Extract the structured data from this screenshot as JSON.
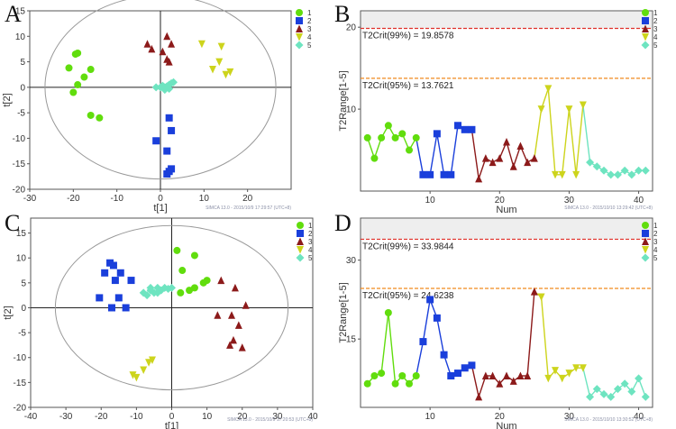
{
  "figure": {
    "panels": {
      "A": {
        "letter": "A",
        "stamp": "SIMCA 13.0 - 2015/10/9 17:29:57 (UTC+8)"
      },
      "B": {
        "letter": "B",
        "stamp": "SIMCA 13.0 - 2015/10/10 13:29:42 (UTC+8)"
      },
      "C": {
        "letter": "C",
        "stamp": "SIMCA 13.0 - 2015/10/9 17:20:53 (UTC+8)"
      },
      "D": {
        "letter": "D",
        "stamp": "SIMCA 13.0 - 2015/10/10 13:30:52 (UTC+8)"
      }
    }
  },
  "chart_data": [
    {
      "id": "A",
      "type": "scatter",
      "title": "",
      "xlabel": "t[1]",
      "ylabel": "t[2]",
      "xlim": [
        -30,
        30
      ],
      "ylim": [
        -20,
        15
      ],
      "xticks": [
        -30,
        -20,
        -10,
        0,
        10,
        20
      ],
      "yticks": [
        -20,
        -15,
        -10,
        -5,
        0,
        5,
        10,
        15
      ],
      "ellipse": {
        "rx": 26.5,
        "ry": 18
      },
      "legend": {
        "position": "top-right",
        "entries": [
          "1",
          "2",
          "3",
          "4",
          "5"
        ]
      },
      "series": [
        {
          "name": "1",
          "color": "#61dd0d",
          "marker": "circle",
          "points": [
            [
              -19.5,
              6.5
            ],
            [
              -19,
              6.7
            ],
            [
              -21,
              3.8
            ],
            [
              -16,
              3.5
            ],
            [
              -17.5,
              2
            ],
            [
              -19,
              0.5
            ],
            [
              -20,
              -1
            ],
            [
              -16,
              -5.5
            ],
            [
              -14,
              -6
            ]
          ]
        },
        {
          "name": "2",
          "color": "#1a3fdb",
          "marker": "square",
          "points": [
            [
              2,
              -6
            ],
            [
              2.5,
              -8.5
            ],
            [
              -1,
              -10.5
            ],
            [
              1.5,
              -12.5
            ],
            [
              2.5,
              -16
            ],
            [
              2,
              -16.5
            ],
            [
              1.5,
              -17
            ]
          ]
        },
        {
          "name": "3",
          "color": "#8c1a1a",
          "marker": "triangle",
          "points": [
            [
              -3,
              8.5
            ],
            [
              1.5,
              10
            ],
            [
              2.5,
              8.5
            ],
            [
              -2,
              7.5
            ],
            [
              0.5,
              7
            ],
            [
              2,
              5
            ],
            [
              1.5,
              5.5
            ]
          ]
        },
        {
          "name": "4",
          "color": "#cdd41c",
          "marker": "triangle-down",
          "points": [
            [
              9.5,
              8.5
            ],
            [
              14,
              8
            ],
            [
              13.5,
              5
            ],
            [
              12,
              3.5
            ],
            [
              15,
              2.5
            ],
            [
              16,
              3
            ]
          ]
        },
        {
          "name": "5",
          "color": "#6ee4c0",
          "marker": "diamond",
          "points": [
            [
              -1,
              0
            ],
            [
              0,
              0
            ],
            [
              0.5,
              0.3
            ],
            [
              1,
              0
            ],
            [
              1.5,
              0.2
            ],
            [
              2,
              0.5
            ],
            [
              2.5,
              0.8
            ],
            [
              3,
              1
            ],
            [
              1,
              -0.5
            ],
            [
              2,
              -0.3
            ]
          ]
        }
      ]
    },
    {
      "id": "B",
      "type": "line",
      "title": "",
      "xlabel": "Num",
      "ylabel": "T2Range[1-5]",
      "xlim": [
        0,
        42
      ],
      "ylim": [
        0,
        22
      ],
      "xticks": [
        10,
        20,
        30,
        40
      ],
      "yticks": [
        10,
        20
      ],
      "critical_lines": [
        {
          "label": "T2Crit(99%) = 19.8578",
          "value": 19.8578,
          "color": "#e0302a"
        },
        {
          "label": "T2Crit(95%) = 13.7621",
          "value": 13.7621,
          "color": "#f08a1f"
        }
      ],
      "legend": {
        "position": "top-right",
        "entries": [
          "1",
          "2",
          "3",
          "4",
          "5"
        ]
      },
      "series": [
        {
          "name": "1",
          "color": "#61dd0d",
          "marker": "circle",
          "x": [
            1,
            2,
            3,
            4,
            5,
            6,
            7,
            8
          ],
          "values": [
            6.5,
            4,
            6.5,
            8,
            6.5,
            7,
            5,
            6.5
          ]
        },
        {
          "name": "2",
          "color": "#1a3fdb",
          "marker": "square",
          "x": [
            9,
            10,
            11,
            12,
            13,
            14,
            15,
            16
          ],
          "values": [
            2,
            2,
            7,
            2,
            2,
            8,
            7.5,
            7.5
          ]
        },
        {
          "name": "3",
          "color": "#8c1a1a",
          "marker": "triangle",
          "x": [
            17,
            18,
            19,
            20,
            21,
            22,
            23,
            24,
            25
          ],
          "values": [
            1.5,
            4,
            3.5,
            4,
            6,
            3,
            5.5,
            3.5,
            4
          ]
        },
        {
          "name": "4",
          "color": "#cdd41c",
          "marker": "triangle-down",
          "x": [
            26,
            27,
            28,
            29,
            30,
            31,
            32
          ],
          "values": [
            10,
            12.5,
            2,
            2,
            10,
            2,
            10.5
          ]
        },
        {
          "name": "5",
          "color": "#6ee4c0",
          "marker": "diamond",
          "x": [
            33,
            34,
            35,
            36,
            37,
            38,
            39,
            40,
            41
          ],
          "values": [
            3.5,
            3,
            2.5,
            2,
            2,
            2.5,
            2,
            2.5,
            2.5
          ]
        }
      ]
    },
    {
      "id": "C",
      "type": "scatter",
      "title": "",
      "xlabel": "t[1]",
      "ylabel": "t[2]",
      "xlim": [
        -40,
        40
      ],
      "ylim": [
        -20,
        18
      ],
      "xticks": [
        -40,
        -30,
        -20,
        -10,
        0,
        10,
        20,
        30,
        40
      ],
      "yticks": [
        -20,
        -15,
        -10,
        -5,
        0,
        5,
        10,
        15
      ],
      "ellipse": {
        "rx": 33,
        "ry": 16.5
      },
      "legend": {
        "position": "top-right",
        "entries": [
          "1",
          "2",
          "3",
          "4",
          "5"
        ]
      },
      "series": [
        {
          "name": "1",
          "color": "#61dd0d",
          "marker": "circle",
          "points": [
            [
              1.5,
              11.5
            ],
            [
              6.5,
              10.5
            ],
            [
              3,
              7.5
            ],
            [
              10,
              5.5
            ],
            [
              9,
              5
            ],
            [
              6.5,
              4
            ],
            [
              5,
              3.5
            ],
            [
              2.5,
              3
            ]
          ]
        },
        {
          "name": "2",
          "color": "#1a3fdb",
          "marker": "square",
          "points": [
            [
              -17.5,
              9
            ],
            [
              -16.5,
              8.5
            ],
            [
              -14.5,
              7
            ],
            [
              -11.5,
              5.5
            ],
            [
              -19,
              7
            ],
            [
              -16,
              5.5
            ],
            [
              -20.5,
              2
            ],
            [
              -17,
              0
            ],
            [
              -15,
              2
            ],
            [
              -13,
              0
            ]
          ]
        },
        {
          "name": "3",
          "color": "#8c1a1a",
          "marker": "triangle",
          "points": [
            [
              14,
              5.5
            ],
            [
              18,
              4
            ],
            [
              21,
              0.5
            ],
            [
              13,
              -1.5
            ],
            [
              17,
              -1.5
            ],
            [
              19,
              -3.5
            ],
            [
              17.5,
              -6.5
            ],
            [
              16.5,
              -7.5
            ],
            [
              20,
              -8
            ]
          ]
        },
        {
          "name": "4",
          "color": "#cdd41c",
          "marker": "triangle-down",
          "points": [
            [
              -11,
              -13.5
            ],
            [
              -8,
              -12.5
            ],
            [
              -6.5,
              -11
            ],
            [
              -5.5,
              -10.5
            ],
            [
              -10,
              -14
            ]
          ]
        },
        {
          "name": "5",
          "color": "#6ee4c0",
          "marker": "diamond",
          "points": [
            [
              -8,
              3
            ],
            [
              -6,
              3.5
            ],
            [
              -4,
              4
            ],
            [
              -2,
              4
            ],
            [
              0,
              4
            ],
            [
              -7,
              2.5
            ],
            [
              -5,
              3
            ],
            [
              -3,
              3.5
            ],
            [
              -1,
              3.8
            ],
            [
              -6,
              4
            ],
            [
              -4,
              3
            ]
          ]
        }
      ]
    },
    {
      "id": "D",
      "type": "line",
      "title": "",
      "xlabel": "Num",
      "ylabel": "T2Range[1-5]",
      "xlim": [
        0,
        42
      ],
      "ylim": [
        2,
        38
      ],
      "xticks": [
        10,
        20,
        30,
        40
      ],
      "yticks": [
        15,
        30
      ],
      "critical_lines": [
        {
          "label": "T2Crit(99%) = 33.9844",
          "value": 33.9844,
          "color": "#e0302a"
        },
        {
          "label": "T2Crit(95%) = 24.6238",
          "value": 24.6238,
          "color": "#f08a1f"
        }
      ],
      "legend": {
        "position": "top-right",
        "entries": [
          "1",
          "2",
          "3",
          "4",
          "5"
        ]
      },
      "series": [
        {
          "name": "1",
          "color": "#61dd0d",
          "marker": "circle",
          "x": [
            1,
            2,
            3,
            4,
            5,
            6,
            7,
            8
          ],
          "values": [
            6.5,
            8,
            8.5,
            20,
            6.5,
            8,
            6.5,
            8
          ]
        },
        {
          "name": "2",
          "color": "#1a3fdb",
          "marker": "square",
          "x": [
            9,
            10,
            11,
            12,
            13,
            14,
            15,
            16
          ],
          "values": [
            14.5,
            22.5,
            19,
            12,
            8,
            8.5,
            9.5,
            10
          ]
        },
        {
          "name": "3",
          "color": "#8c1a1a",
          "marker": "triangle",
          "x": [
            17,
            18,
            19,
            20,
            21,
            22,
            23,
            24,
            25
          ],
          "values": [
            4,
            8,
            8,
            6.5,
            8,
            7,
            8,
            8,
            24
          ]
        },
        {
          "name": "4",
          "color": "#cdd41c",
          "marker": "triangle-down",
          "x": [
            26,
            27,
            28,
            29,
            30,
            31,
            32
          ],
          "values": [
            23,
            7.5,
            9,
            7.5,
            8.5,
            9.5,
            9.5
          ]
        },
        {
          "name": "5",
          "color": "#6ee4c0",
          "marker": "diamond",
          "x": [
            33,
            34,
            35,
            36,
            37,
            38,
            39,
            40,
            41
          ],
          "values": [
            4,
            5.5,
            4.5,
            4,
            5.5,
            6.5,
            5,
            7.5,
            4
          ]
        }
      ]
    }
  ]
}
